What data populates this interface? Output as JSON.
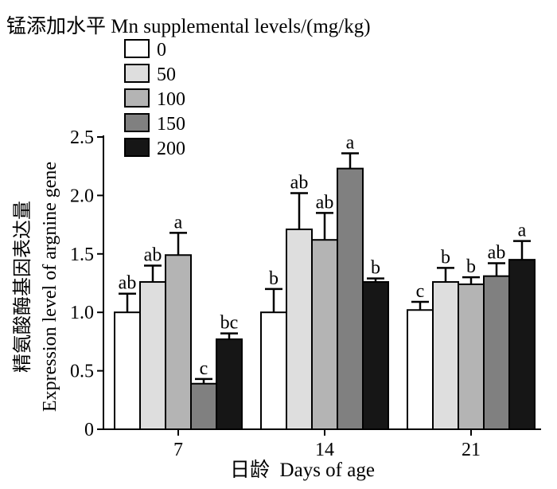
{
  "chart_data": {
    "type": "bar",
    "legend_title": "锰添加水平 Mn supplemental levels/(mg/kg)",
    "legend_placement": "top-left",
    "xlabel": "日龄  Days of age",
    "ylabel_cn": "精氨酸酶基因表达量",
    "ylabel_en": "Expression level of argnine gene",
    "categories": [
      "7",
      "14",
      "21"
    ],
    "ylim": [
      0,
      2.5
    ],
    "yticks": [
      "0",
      "0.5",
      "1.0",
      "1.5",
      "2.0",
      "2.5"
    ],
    "ytick_values": [
      0,
      0.5,
      1.0,
      1.5,
      2.0,
      2.5
    ],
    "series": [
      {
        "name": "0",
        "color": "#ffffff",
        "values": [
          1.0,
          1.0,
          1.02
        ],
        "errors": [
          0.16,
          0.2,
          0.07
        ],
        "labels": [
          "ab",
          "b",
          "c"
        ]
      },
      {
        "name": "50",
        "color": "#dedede",
        "values": [
          1.26,
          1.71,
          1.26
        ],
        "errors": [
          0.14,
          0.31,
          0.12
        ],
        "labels": [
          "ab",
          "ab",
          "b"
        ]
      },
      {
        "name": "100",
        "color": "#b4b4b4",
        "values": [
          1.49,
          1.62,
          1.24
        ],
        "errors": [
          0.19,
          0.23,
          0.06
        ],
        "labels": [
          "a",
          "ab",
          "b"
        ]
      },
      {
        "name": "150",
        "color": "#808080",
        "values": [
          0.39,
          2.23,
          1.31
        ],
        "errors": [
          0.04,
          0.13,
          0.11
        ],
        "labels": [
          "c",
          "a",
          "ab"
        ]
      },
      {
        "name": "200",
        "color": "#161616",
        "values": [
          0.77,
          1.26,
          1.45
        ],
        "errors": [
          0.05,
          0.03,
          0.16
        ],
        "labels": [
          "bc",
          "b",
          "a"
        ]
      }
    ]
  }
}
